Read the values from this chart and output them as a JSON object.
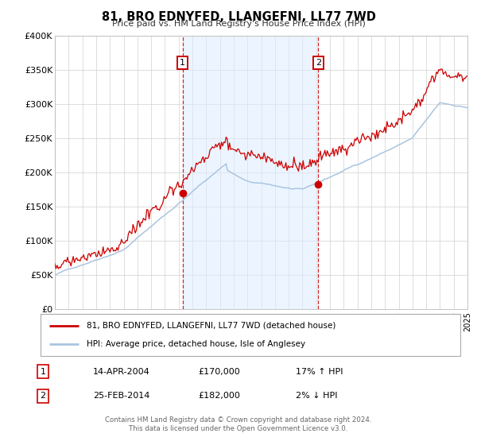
{
  "title": "81, BRO EDNYFED, LLANGEFNI, LL77 7WD",
  "subtitle": "Price paid vs. HM Land Registry's House Price Index (HPI)",
  "legend_line1": "81, BRO EDNYFED, LLANGEFNI, LL77 7WD (detached house)",
  "legend_line2": "HPI: Average price, detached house, Isle of Anglesey",
  "annotation1_label": "1",
  "annotation1_date": "14-APR-2004",
  "annotation1_price": "£170,000",
  "annotation1_hpi": "17% ↑ HPI",
  "annotation2_label": "2",
  "annotation2_date": "25-FEB-2014",
  "annotation2_price": "£182,000",
  "annotation2_hpi": "2% ↓ HPI",
  "footer1": "Contains HM Land Registry data © Crown copyright and database right 2024.",
  "footer2": "This data is licensed under the Open Government Licence v3.0.",
  "hpi_color": "#aac4e0",
  "price_color": "#cc0000",
  "sale1_date": 2004.29,
  "sale1_price": 170000,
  "sale2_date": 2014.15,
  "sale2_price": 182000,
  "vline1_date": 2004.29,
  "vline2_date": 2014.15,
  "xmin": 1995,
  "xmax": 2025,
  "ymin": 0,
  "ymax": 400000,
  "yticks": [
    0,
    50000,
    100000,
    150000,
    200000,
    250000,
    300000,
    350000,
    400000
  ],
  "ytick_labels": [
    "£0",
    "£50K",
    "£100K",
    "£150K",
    "£200K",
    "£250K",
    "£300K",
    "£350K",
    "£400K"
  ]
}
